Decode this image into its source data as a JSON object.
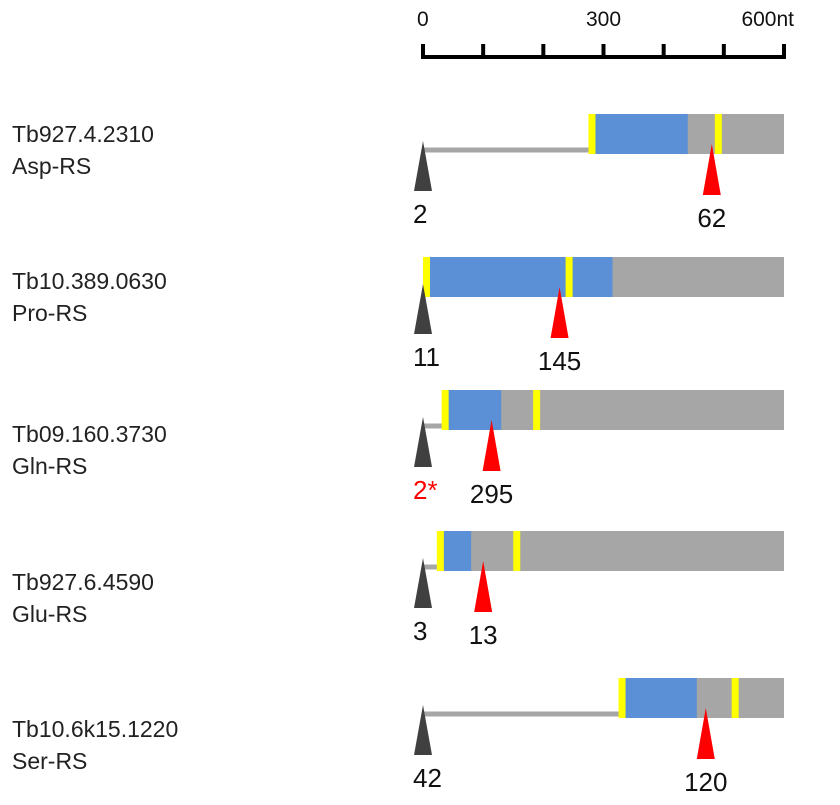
{
  "scale": {
    "max_nt": 600,
    "ticks": [
      {
        "value": 0,
        "label": "0"
      },
      {
        "value": 100,
        "label": ""
      },
      {
        "value": 200,
        "label": ""
      },
      {
        "value": 300,
        "label": "300"
      },
      {
        "value": 400,
        "label": ""
      },
      {
        "value": 500,
        "label": ""
      },
      {
        "value": 600,
        "label": "600nt"
      }
    ]
  },
  "colors": {
    "leader_line": "#a6a6a6",
    "utr_box": "#a6a6a6",
    "domain_box": "#5b8fd6",
    "boundary_mark": "#ffff00",
    "gray_marker": "#404040",
    "red_marker": "#ff0000",
    "red_label": "#ff0000"
  },
  "genes": [
    {
      "id": "Tb927.4.2310",
      "name": "Asp-RS",
      "gray_box_start": 280,
      "blue_start": 280,
      "blue_end": 440,
      "box_end": 600,
      "yellow_marks": [
        280,
        490
      ],
      "gray_marker": {
        "pos": 0,
        "label": "2",
        "label_red": false
      },
      "red_marker": {
        "pos": 480,
        "label": "62"
      }
    },
    {
      "id": "Tb10.389.0630",
      "name": "Pro-RS",
      "gray_box_start": 5,
      "blue_start": 5,
      "blue_end": 315,
      "box_end": 600,
      "yellow_marks": [
        5,
        242
      ],
      "gray_marker": {
        "pos": 0,
        "label": "11",
        "label_red": false
      },
      "red_marker": {
        "pos": 227,
        "label": "145"
      }
    },
    {
      "id": "Tb09.160.3730",
      "name": "Gln-RS",
      "gray_box_start": 36,
      "blue_start": 36,
      "blue_end": 130,
      "box_end": 600,
      "yellow_marks": [
        36,
        188
      ],
      "gray_marker": {
        "pos": 0,
        "label": "2*",
        "label_red": true
      },
      "red_marker": {
        "pos": 114,
        "label": "295"
      }
    },
    {
      "id": "Tb927.6.4590",
      "name": "Glu-RS",
      "gray_box_start": 28,
      "blue_start": 28,
      "blue_end": 80,
      "box_end": 600,
      "yellow_marks": [
        28,
        155
      ],
      "gray_marker": {
        "pos": 0,
        "label": "3",
        "label_red": false
      },
      "red_marker": {
        "pos": 100,
        "label": "13"
      }
    },
    {
      "id": "Tb10.6k15.1220",
      "name": "Ser-RS",
      "gray_box_start": 330,
      "blue_start": 330,
      "blue_end": 455,
      "box_end": 600,
      "yellow_marks": [
        330,
        518
      ],
      "gray_marker": {
        "pos": 0,
        "label": "42",
        "label_red": false
      },
      "red_marker": {
        "pos": 470,
        "label": "120"
      }
    }
  ]
}
